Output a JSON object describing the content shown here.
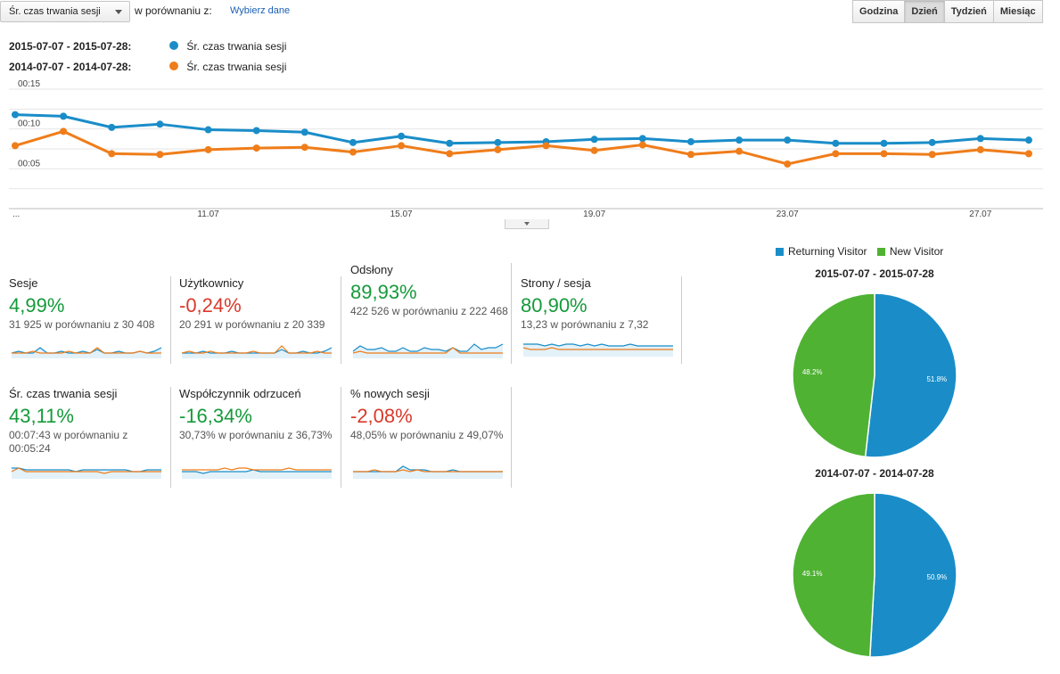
{
  "toolbar": {
    "metric_selected": "Śr. czas trwania sesji",
    "compare_label": "w porównaniu z:",
    "compare_link": "Wybierz dane",
    "granularity": [
      "Godzina",
      "Dzień",
      "Tydzień",
      "Miesiąc"
    ],
    "granularity_active": "Dzień"
  },
  "legend": [
    {
      "range": "2015-07-07 - 2015-07-28:",
      "metric": "Śr. czas trwania sesji",
      "color": "#1a8dc8"
    },
    {
      "range": "2014-07-07 - 2014-07-28:",
      "metric": "Śr. czas trwania sesji",
      "color": "#ef7d1a"
    }
  ],
  "chart_data": [
    {
      "type": "line",
      "y_ticks": [
        "00:15",
        "00:10",
        "00:05"
      ],
      "x_ticks": [
        "...",
        "11.07",
        "15.07",
        "19.07",
        "23.07",
        "27.07"
      ],
      "ylim": [
        0,
        15
      ],
      "grid": true,
      "series": [
        {
          "name": "2015-07-07 - 2015-07-28: Śr. czas trwania sesji",
          "color": "#1a8dc8",
          "values": [
            11.8,
            11.6,
            10.2,
            10.6,
            9.9,
            9.8,
            9.6,
            8.3,
            9.1,
            8.2,
            8.3,
            8.4,
            8.7,
            8.8,
            8.4,
            8.6,
            8.6,
            8.2,
            8.2,
            8.3,
            8.8,
            8.6
          ]
        },
        {
          "name": "2014-07-07 - 2014-07-28: Śr. czas trwania sesji",
          "color": "#ef7d1a",
          "values": [
            7.9,
            9.7,
            6.9,
            6.8,
            7.4,
            7.6,
            7.7,
            7.1,
            7.9,
            6.9,
            7.4,
            7.9,
            7.3,
            8.0,
            6.8,
            7.2,
            5.6,
            6.9,
            6.9,
            6.8,
            7.4,
            6.9
          ]
        }
      ]
    },
    {
      "type": "pie",
      "title": "2015-07-07 - 2015-07-28",
      "legend": [
        "Returning Visitor",
        "New Visitor"
      ],
      "slices": [
        {
          "label": "Returning Visitor",
          "value": 51.8,
          "display": "51.8%",
          "color": "#1a8dc8"
        },
        {
          "label": "New Visitor",
          "value": 48.2,
          "display": "48.2%",
          "color": "#4fb233"
        }
      ]
    },
    {
      "type": "pie",
      "title": "2014-07-07 - 2014-07-28",
      "slices": [
        {
          "label": "Returning Visitor",
          "value": 50.9,
          "display": "50.9%",
          "color": "#1a8dc8"
        },
        {
          "label": "New Visitor",
          "value": 49.1,
          "display": "49.1%",
          "color": "#4fb233"
        }
      ]
    }
  ],
  "scorecards": [
    {
      "label": "Sesje",
      "pct": "4,99%",
      "sentiment": "positive",
      "sub": "31 925 w porównaniu z 30 408",
      "spark_a": [
        3,
        4,
        3,
        3,
        6,
        3,
        3,
        4,
        3,
        3,
        4,
        3,
        5,
        3,
        3,
        4,
        3,
        3,
        4,
        3,
        4,
        6
      ],
      "spark_b": [
        3,
        3,
        3,
        4,
        3,
        3,
        3,
        3,
        4,
        3,
        3,
        3,
        6,
        3,
        3,
        3,
        3,
        3,
        4,
        3,
        3,
        3
      ]
    },
    {
      "label": "Użytkownicy",
      "pct": "-0,24%",
      "sentiment": "negative",
      "sub": "20 291 w porównaniu z 20 339",
      "spark_a": [
        3,
        3,
        3,
        4,
        3,
        3,
        3,
        4,
        3,
        3,
        3,
        3,
        3,
        3,
        5,
        3,
        3,
        4,
        3,
        3,
        4,
        6
      ],
      "spark_b": [
        3,
        4,
        3,
        3,
        4,
        3,
        3,
        3,
        3,
        3,
        4,
        3,
        3,
        3,
        7,
        3,
        3,
        3,
        3,
        4,
        3,
        3
      ]
    },
    {
      "label": "Odsłony",
      "pct": "89,93%",
      "sentiment": "positive",
      "sub": "422 526 w porównaniu z 222 468",
      "spark_a": [
        4,
        7,
        5,
        5,
        6,
        4,
        4,
        6,
        4,
        4,
        6,
        5,
        5,
        4,
        6,
        4,
        4,
        8,
        5,
        6,
        6,
        8
      ],
      "spark_b": [
        3,
        4,
        3,
        3,
        3,
        3,
        3,
        3,
        3,
        3,
        3,
        3,
        3,
        3,
        6,
        3,
        3,
        3,
        3,
        3,
        3,
        3
      ]
    },
    {
      "label": "Strony / sesja",
      "pct": "80,90%",
      "sentiment": "positive",
      "sub": "13,23 w porównaniu z 7,32",
      "spark_a": [
        7,
        7,
        7,
        6,
        7,
        6,
        7,
        7,
        6,
        7,
        6,
        7,
        6,
        6,
        6,
        7,
        6,
        6,
        6,
        6,
        6,
        6
      ],
      "spark_b": [
        5,
        4,
        4,
        4,
        5,
        4,
        4,
        4,
        4,
        4,
        4,
        4,
        4,
        4,
        4,
        4,
        4,
        4,
        4,
        4,
        4,
        4
      ]
    },
    {
      "label": "Śr. czas trwania sesji",
      "pct": "43,11%",
      "sentiment": "positive",
      "sub": "00:07:43 w porównaniu z 00:05:24",
      "spark_a": [
        6,
        6,
        5,
        5,
        5,
        5,
        5,
        5,
        5,
        4,
        5,
        5,
        5,
        5,
        5,
        5,
        5,
        4,
        4,
        5,
        5,
        5
      ],
      "spark_b": [
        4,
        6,
        4,
        4,
        4,
        4,
        4,
        4,
        4,
        4,
        4,
        4,
        4,
        3,
        4,
        4,
        4,
        4,
        4,
        4,
        4,
        4
      ]
    },
    {
      "label": "Współczynnik odrzuceń",
      "pct": "-16,34%",
      "sentiment": "positive",
      "sub": "30,73% w porównaniu z 36,73%",
      "spark_a": [
        4,
        4,
        4,
        3,
        4,
        4,
        4,
        4,
        4,
        4,
        5,
        4,
        4,
        4,
        4,
        4,
        4,
        4,
        4,
        4,
        4,
        4
      ],
      "spark_b": [
        5,
        5,
        5,
        5,
        5,
        5,
        6,
        5,
        6,
        6,
        5,
        5,
        5,
        5,
        5,
        6,
        5,
        5,
        5,
        5,
        5,
        5
      ]
    },
    {
      "label": "% nowych sesji",
      "pct": "-2,08%",
      "sentiment": "negative",
      "sub": "48,05% w porównaniu z 49,07%",
      "spark_a": [
        4,
        4,
        4,
        4,
        4,
        4,
        4,
        7,
        5,
        5,
        5,
        4,
        4,
        4,
        5,
        4,
        4,
        4,
        4,
        4,
        4,
        4
      ],
      "spark_b": [
        4,
        4,
        4,
        5,
        4,
        4,
        4,
        5,
        4,
        5,
        4,
        4,
        4,
        4,
        4,
        4,
        4,
        4,
        4,
        4,
        4,
        4
      ]
    }
  ]
}
